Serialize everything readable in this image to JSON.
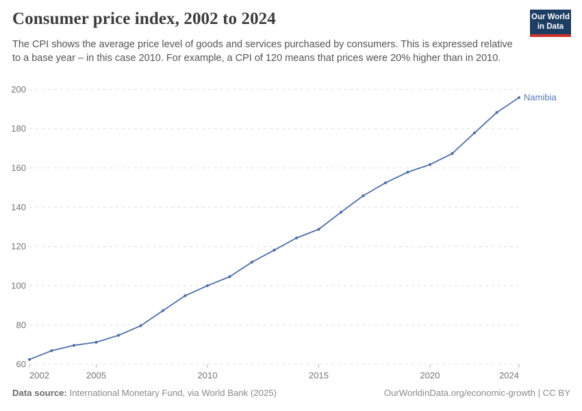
{
  "header": {
    "title": "Consumer price index, 2002 to 2024",
    "subtitle": "The CPI shows the average price level of goods and services purchased by consumers. This is expressed relative to a base year – in this case 2010. For example, a CPI of 120 means that prices were 20% higher than in 2010.",
    "logo": {
      "line1": "Our World",
      "line2": "in Data"
    }
  },
  "colors": {
    "series_line": "#4d6fa8",
    "series_label": "#5779b3",
    "grid": "#dddddd",
    "tick_label": "#737373",
    "logo_navy": "#1d3d63",
    "logo_red": "#d2322b"
  },
  "chart_data": {
    "type": "line",
    "title": "Consumer price index, 2002 to 2024",
    "xlabel": "",
    "ylabel": "",
    "ylim": [
      60,
      200
    ],
    "yticks": [
      60,
      80,
      100,
      120,
      140,
      160,
      180,
      200
    ],
    "xticks": [
      2002,
      2005,
      2010,
      2015,
      2020,
      2024
    ],
    "grid": "horizontal-dashed",
    "legend_position": "end-of-line-label",
    "series": [
      {
        "name": "Namibia",
        "x": [
          2002,
          2003,
          2004,
          2005,
          2006,
          2007,
          2008,
          2009,
          2010,
          2011,
          2012,
          2013,
          2014,
          2015,
          2016,
          2017,
          2018,
          2019,
          2020,
          2021,
          2022,
          2023,
          2024
        ],
        "values": [
          62.4,
          66.9,
          69.6,
          71.2,
          74.7,
          79.6,
          87.3,
          94.9,
          100.0,
          104.6,
          112.0,
          118.1,
          124.3,
          128.7,
          137.4,
          145.8,
          152.4,
          157.8,
          161.7,
          167.3,
          177.8,
          188.2,
          195.8
        ]
      }
    ]
  },
  "footer": {
    "data_source_label": "Data source:",
    "data_source_value": " International Monetary Fund, via World Bank (2025)",
    "attribution": "OurWorldinData.org/economic-growth | CC BY"
  }
}
